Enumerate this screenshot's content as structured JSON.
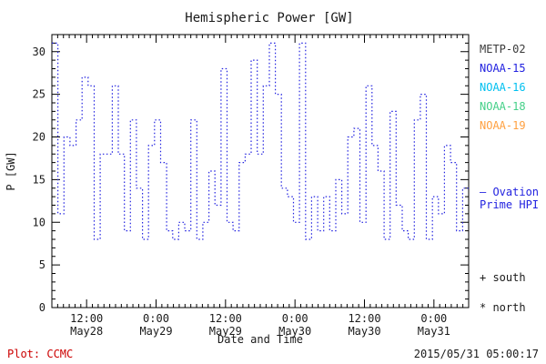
{
  "title": "Hemispheric Power [GW]",
  "footer": {
    "plot_credit": "Plot: CCMC",
    "timestamp": "2015/05/31 05:00:17"
  },
  "legend": {
    "satellites": [
      {
        "label": "METP-02",
        "color": "#3a3a3a"
      },
      {
        "label": "NOAA-15",
        "color": "#2222e0"
      },
      {
        "label": "NOAA-16",
        "color": "#00c0f0"
      },
      {
        "label": "NOAA-18",
        "color": "#44d088",
        "color_note": "light green"
      },
      {
        "label": "NOAA-19",
        "color": "#ffa040"
      }
    ],
    "ovation_line1": "– Ovation",
    "ovation_line2": "Prime HPI",
    "ovation_color": "#2222e0",
    "south_marker_label": "+ south",
    "north_marker_label": "* north"
  },
  "chart_data": {
    "type": "line",
    "line_style": "dotted-step",
    "line_color": "#2222e0",
    "title": "Hemispheric Power [GW]",
    "xlabel": "Date and Time",
    "ylabel": "P [GW]",
    "ylim": [
      0,
      32
    ],
    "yticks": [
      0,
      5,
      10,
      15,
      20,
      25,
      30
    ],
    "x_unit": "hours from plot start",
    "xlim": [
      0,
      72
    ],
    "xticks": [
      {
        "hours": 6,
        "time": "12:00",
        "date": "May28"
      },
      {
        "hours": 18,
        "time": "0:00",
        "date": "May29"
      },
      {
        "hours": 30,
        "time": "12:00",
        "date": "May29"
      },
      {
        "hours": 42,
        "time": "0:00",
        "date": "May30"
      },
      {
        "hours": 54,
        "time": "12:00",
        "date": "May30"
      },
      {
        "hours": 66,
        "time": "0:00",
        "date": "May31"
      }
    ],
    "grid": false,
    "legend_position": "right",
    "series": [
      {
        "name": "Hemispheric Power HPI",
        "color": "#2222e0",
        "values_gw": [
          31,
          11,
          20,
          19,
          22,
          27,
          26,
          8,
          18,
          18,
          26,
          18,
          9,
          22,
          14,
          8,
          19,
          22,
          17,
          9,
          8,
          10,
          9,
          22,
          8,
          10,
          16,
          12,
          28,
          10,
          9,
          17,
          18,
          29,
          18,
          26,
          31,
          25,
          14,
          13,
          10,
          31,
          8,
          13,
          9,
          13,
          9,
          15,
          11,
          20,
          21,
          10,
          26,
          19,
          16,
          8,
          23,
          12,
          9,
          8,
          22,
          25,
          8,
          13,
          11,
          19,
          17,
          9,
          14
        ]
      }
    ]
  }
}
